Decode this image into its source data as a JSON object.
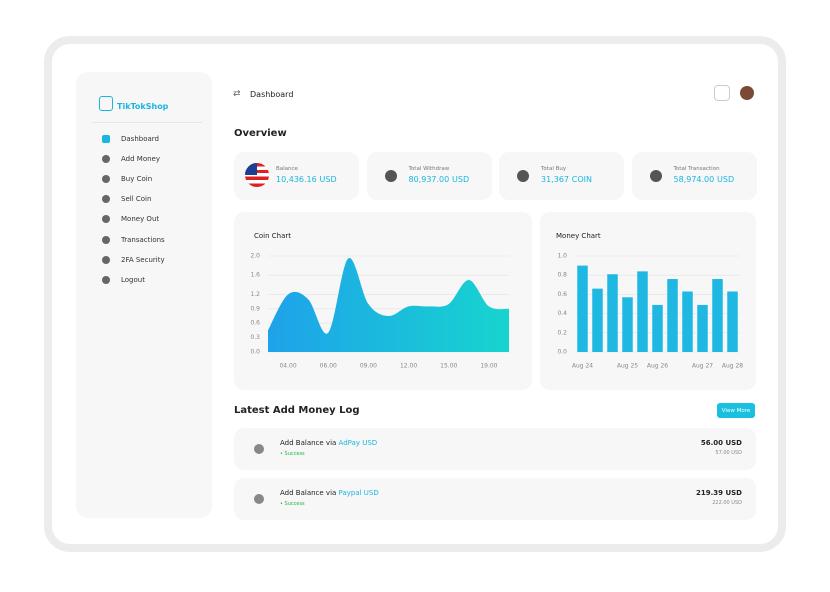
{
  "brand": "TikTokShop",
  "nav": [
    "Dashboard",
    "Add Money",
    "Buy Coin",
    "Sell Coin",
    "Money Out",
    "Transactions",
    "2FA Security",
    "Logout"
  ],
  "header": {
    "title": "Dashboard"
  },
  "overview": {
    "title": "Overview",
    "cards": [
      {
        "label": "Balance",
        "amount": "10,436.16",
        "unit": "USD"
      },
      {
        "label": "Total Withdraw",
        "amount": "80,937.00",
        "unit": "USD"
      },
      {
        "label": "Total Buy",
        "amount": "31,367",
        "unit": "COIN"
      },
      {
        "label": "Total Transaction",
        "amount": "58,974.00",
        "unit": "USD"
      }
    ]
  },
  "chart_data": [
    {
      "type": "area",
      "title": "Coin Chart",
      "categories": [
        null,
        "04.00",
        null,
        "06.00",
        null,
        "09.00",
        null,
        "12.00",
        null,
        "15.00",
        null,
        "19.00",
        null
      ],
      "values": [
        0.45,
        1.2,
        1.1,
        0.4,
        1.95,
        1.0,
        0.75,
        0.95,
        0.95,
        1.0,
        1.5,
        0.95,
        0.9
      ],
      "colors": [
        "#1ea2ea",
        "#17d4cf"
      ],
      "ylim": [
        0,
        2
      ],
      "yticks": [
        {
          "value": 0,
          "label": "0.0"
        },
        0.3,
        0.6,
        0.9,
        1.2,
        1.6,
        {
          "value": 2,
          "label": "2.0"
        }
      ],
      "grid": true
    },
    {
      "type": "bar",
      "title": "Money Chart",
      "categories": [
        "Aug 24",
        null,
        null,
        "Aug 25",
        null,
        "Aug 26",
        null,
        null,
        "Aug 27",
        null,
        "Aug 28"
      ],
      "values": [
        0.9,
        0.66,
        0.81,
        0.57,
        0.84,
        0.49,
        0.76,
        0.63,
        0.49,
        0.76,
        0.63
      ],
      "color": "#1fb8e3",
      "ylim": [
        0,
        1
      ],
      "yticks": [
        {
          "value": 0,
          "label": "0.0"
        },
        0.2,
        0.4,
        0.6,
        0.8,
        {
          "value": 1,
          "label": "1.0"
        }
      ],
      "grid": true
    }
  ],
  "log": {
    "title": "Latest Add Money Log",
    "button": "View More",
    "items": [
      {
        "text": "Add Balance via",
        "method": "AdPay USD",
        "status": "• Success",
        "amount": "56.00 USD",
        "sub": "57.00 USD"
      },
      {
        "text": "Add Balance via",
        "method": "Paypal USD",
        "status": "• Success",
        "amount": "219.39 USD",
        "sub": "222.00 USD"
      }
    ]
  }
}
